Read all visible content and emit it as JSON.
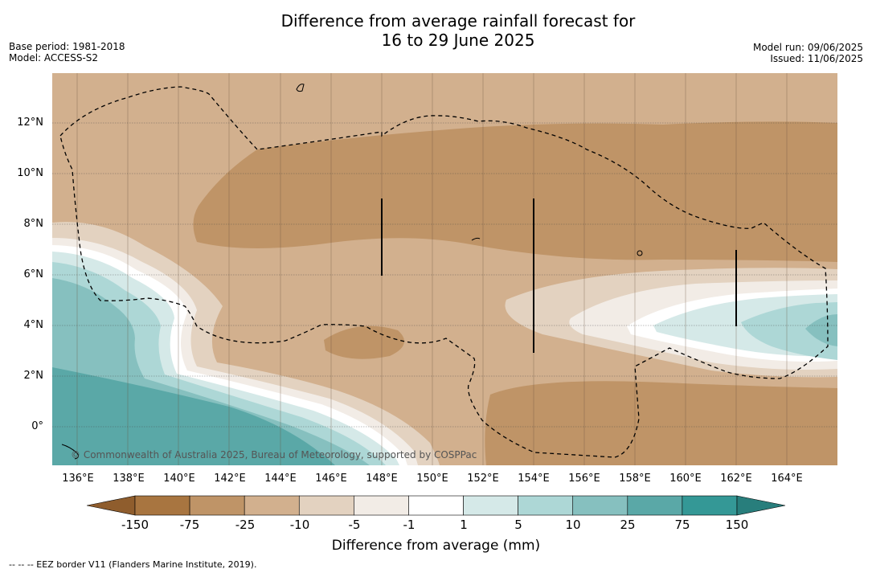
{
  "header": {
    "title_line1": "Difference from average rainfall forecast for",
    "title_line2": "16 to 29 June 2025",
    "base_period": "Base period: 1981-2018",
    "model": "Model: ACCESS-S2",
    "model_run": "Model run: 09/06/2025",
    "issued": "Issued: 11/06/2025"
  },
  "map": {
    "lat_labels": [
      "12°N",
      "10°N",
      "8°N",
      "6°N",
      "4°N",
      "2°N",
      "0°"
    ],
    "lon_labels": [
      "136°E",
      "138°E",
      "140°E",
      "142°E",
      "144°E",
      "146°E",
      "148°E",
      "150°E",
      "152°E",
      "154°E",
      "156°E",
      "158°E",
      "160°E",
      "162°E",
      "164°E"
    ],
    "copyright": "© Commonwealth of Australia 2025, Bureau of Meteorology, supported by COSPPac"
  },
  "legend": {
    "ticks": [
      "-150",
      "-75",
      "-25",
      "-10",
      "-5",
      "-1",
      "1",
      "5",
      "10",
      "25",
      "75",
      "150"
    ],
    "colors": [
      "#a87540",
      "#bf9467",
      "#d2b08e",
      "#e3d2c0",
      "#f2ece6",
      "#ffffff",
      "#d5e9e8",
      "#add7d6",
      "#86c0bf",
      "#5aa8a7",
      "#349896"
    ],
    "low_color": "#8f5d2d",
    "high_color": "#287e7c",
    "title": "Difference from average (mm)"
  },
  "footnote": "--  --  -- EEZ border V11 (Flanders Marine Institute, 2019)."
}
